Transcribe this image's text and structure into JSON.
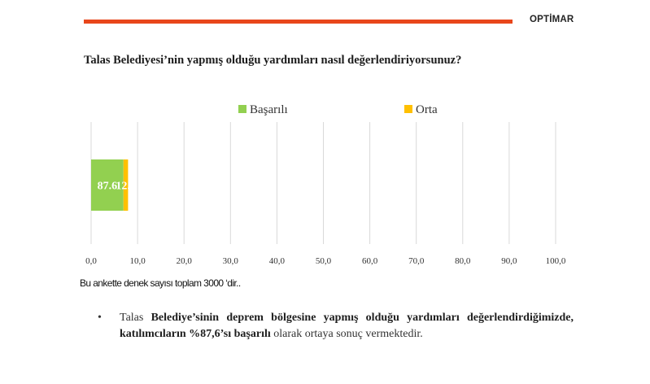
{
  "header": {
    "brand": "OPTİMAR",
    "accent_color": "#e8461b"
  },
  "question": "Talas Belediyesi’nin yapmış olduğu yardımları nasıl değerlendiriyorsunuz?",
  "chart_data": {
    "type": "bar",
    "orientation": "horizontal",
    "stacked": true,
    "categories": [
      ""
    ],
    "series": [
      {
        "name": "Başarılı",
        "values": [
          87.6
        ],
        "color": "#92d050",
        "data_label": "87.6"
      },
      {
        "name": "Orta",
        "values": [
          12.4
        ],
        "color": "#ffc000",
        "data_label": "12.4"
      }
    ],
    "xlim": [
      0,
      100
    ],
    "x_ticks": [
      "0,0",
      "10,0",
      "20,0",
      "30,0",
      "40,0",
      "50,0",
      "60,0",
      "70,0",
      "80,0",
      "90,0",
      "100,0"
    ],
    "grid": true,
    "legend_position": "top"
  },
  "note": "Bu ankette denek sayısı toplam 3000 ‘dir..",
  "summary": {
    "bullet": "•",
    "t1": "Talas ",
    "b1": "Belediye’sinin deprem bölgesine yapmış olduğu yardımları değerlendirdiğimizde, katılımcıların %87,6’sı başarılı",
    "t2": " olarak ortaya sonuç vermektedir."
  }
}
